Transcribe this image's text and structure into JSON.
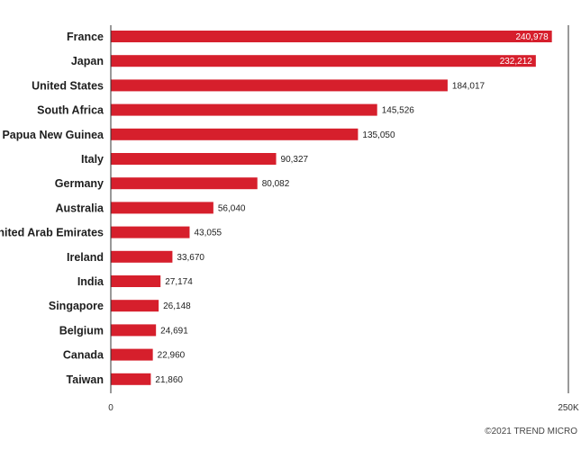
{
  "colors": {
    "bar": "#d61f2c",
    "axis": "#333333",
    "text": "#1e1e1e",
    "inside_label": "#ffffff",
    "outside_label": "#1e1e1e"
  },
  "chart_data": {
    "type": "bar",
    "orientation": "horizontal",
    "categories": [
      "France",
      "Japan",
      "United States",
      "South Africa",
      "Papua New Guinea",
      "Italy",
      "Germany",
      "Australia",
      "United Arab Emirates",
      "Ireland",
      "India",
      "Singapore",
      "Belgium",
      "Canada",
      "Taiwan"
    ],
    "values": [
      240978,
      232212,
      184017,
      145526,
      135050,
      90327,
      80082,
      56040,
      43055,
      33670,
      27174,
      26148,
      24691,
      22960,
      21860
    ],
    "value_labels": [
      "240,978",
      "232,212",
      "184,017",
      "145,526",
      "135,050",
      "90,327",
      "80,082",
      "56,040",
      "43,055",
      "33,670",
      "27,174",
      "26,148",
      "24,691",
      "22,960",
      "21,860"
    ],
    "xlim": [
      0,
      250000
    ],
    "x_tick_labels": [
      "0",
      "250K"
    ],
    "grid": false
  },
  "footer": {
    "credit": "©2021 TREND MICRO"
  }
}
